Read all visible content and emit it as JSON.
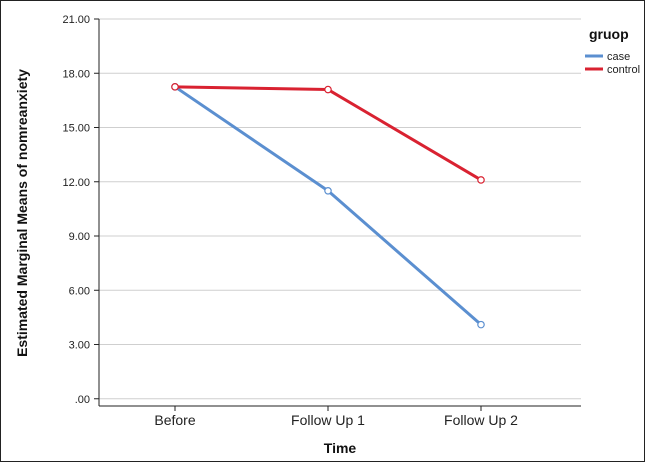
{
  "chart_data": {
    "type": "line",
    "title": "",
    "xlabel": "Time",
    "ylabel": "Estimated Marginal Means of nomreanxiety",
    "categories": [
      "Before",
      "Follow Up 1",
      "Follow Up 2"
    ],
    "ylim": [
      -0.4,
      21
    ],
    "yticks": [
      ".00",
      "3.00",
      "6.00",
      "9.00",
      "12.00",
      "15.00",
      "18.00",
      "21.00"
    ],
    "grid": true,
    "legend": {
      "title": "gruop",
      "placement": "top-right"
    },
    "series": [
      {
        "name": "case",
        "values": [
          17.25,
          11.5,
          4.1
        ],
        "color": "#5b8fd0"
      },
      {
        "name": "control",
        "values": [
          17.25,
          17.1,
          12.1
        ],
        "color": "#d92231"
      }
    ]
  }
}
